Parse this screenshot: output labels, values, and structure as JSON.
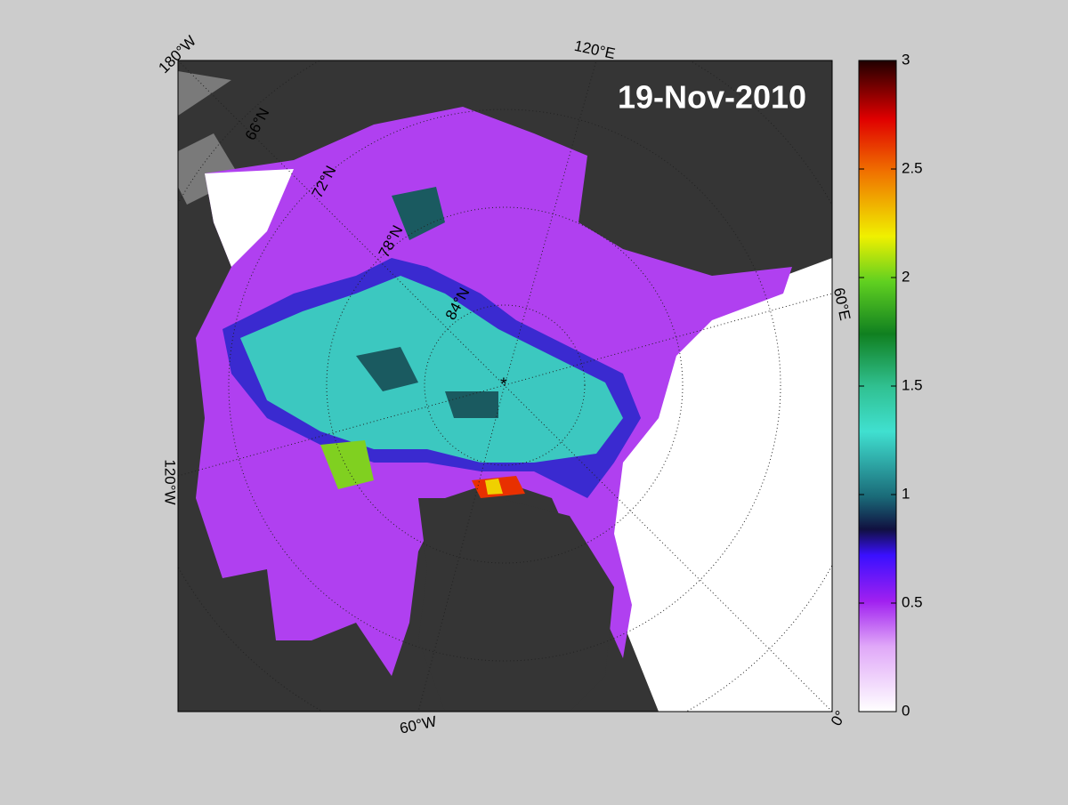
{
  "title": "19-Nov-2010",
  "longitude_labels": [
    "180°W",
    "120°E",
    "60°E",
    "0°",
    "60°W",
    "120°W"
  ],
  "latitude_labels": [
    "66°N",
    "72°N",
    "78°N",
    "84°N"
  ],
  "colorbar": {
    "lim": [
      0,
      3
    ],
    "ticks": [
      0,
      0.5,
      1,
      1.5,
      2,
      2.5,
      3
    ]
  }
}
